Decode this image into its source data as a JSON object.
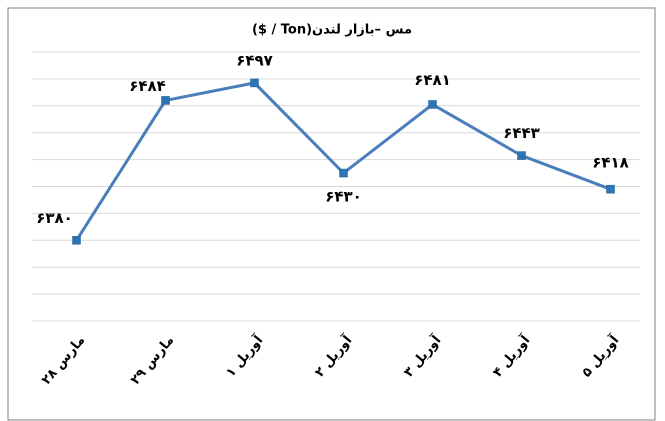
{
  "chart_data": {
    "type": "line",
    "title": "مس –بازار لندن(Ton / $)",
    "categories": [
      "مارس ۲۸",
      "مارس ۲۹",
      "آوریل ۱",
      "آوریل ۲",
      "آوریل ۳",
      "آوریل ۴",
      "آوریل ۵"
    ],
    "series": [
      {
        "name": "مس",
        "color": "#4a7ebb",
        "values": [
          6380,
          6484,
          6497,
          6430,
          6481,
          6443,
          6418
        ],
        "value_labels": [
          "۶۳۸۰",
          "۶۴۸۴",
          "۶۴۹۷",
          "۶۴۳۰",
          "۶۴۸۱",
          "۶۴۴۳",
          "۶۴۱۸"
        ]
      }
    ],
    "ylim": [
      6320,
      6520
    ],
    "yticks": [
      6320,
      6340,
      6360,
      6380,
      6400,
      6420,
      6440,
      6460,
      6480,
      6500,
      6520
    ],
    "grid": true
  }
}
